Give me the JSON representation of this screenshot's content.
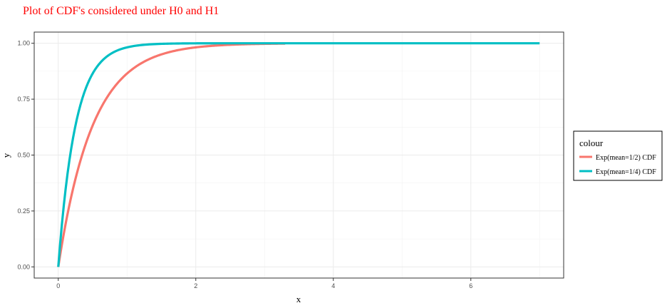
{
  "chart_data": {
    "type": "line",
    "title": "Plot of CDF's considered under H0 and H1",
    "title_color": "#ff0000",
    "xlabel": "x",
    "ylabel": "y",
    "xlim": [
      -0.35,
      7.35
    ],
    "ylim": [
      -0.05,
      1.05
    ],
    "x_ticks": [
      0,
      2,
      4,
      6
    ],
    "x_tick_labels": [
      "0",
      "2",
      "4",
      "6"
    ],
    "y_ticks": [
      0,
      0.25,
      0.5,
      0.75,
      1
    ],
    "y_tick_labels": [
      "0.00",
      "0.25",
      "0.50",
      "0.75",
      "1.00"
    ],
    "grid": true,
    "legend": {
      "title": "colour",
      "position": "right"
    },
    "series": [
      {
        "name": "Exp(mean=1/2) CDF",
        "color": "#f8766d",
        "rate": 2,
        "x_max": 3.3,
        "x": [
          0,
          0.05,
          0.1,
          0.15,
          0.2,
          0.3,
          0.4,
          0.5,
          0.6,
          0.7,
          0.8,
          0.9,
          1.0,
          1.2,
          1.4,
          1.6,
          1.8,
          2.0,
          2.2,
          2.5,
          2.8,
          3.3
        ],
        "y": [
          0,
          0.095,
          0.181,
          0.259,
          0.33,
          0.451,
          0.551,
          0.632,
          0.699,
          0.753,
          0.798,
          0.835,
          0.865,
          0.909,
          0.939,
          0.959,
          0.973,
          0.982,
          0.988,
          0.993,
          0.996,
          0.999
        ]
      },
      {
        "name": "Exp(mean=1/4) CDF",
        "color": "#00bfc4",
        "rate": 4,
        "x_max": 7.0,
        "x": [
          0,
          0.05,
          0.1,
          0.15,
          0.2,
          0.3,
          0.4,
          0.5,
          0.6,
          0.7,
          0.8,
          0.9,
          1.0,
          1.2,
          1.5,
          2.0,
          3.0,
          4.0,
          5.0,
          6.0,
          7.0
        ],
        "y": [
          0,
          0.181,
          0.33,
          0.451,
          0.551,
          0.699,
          0.798,
          0.865,
          0.909,
          0.939,
          0.959,
          0.973,
          0.982,
          0.992,
          0.998,
          1.0,
          1.0,
          1.0,
          1.0,
          1.0,
          1.0
        ]
      }
    ]
  }
}
